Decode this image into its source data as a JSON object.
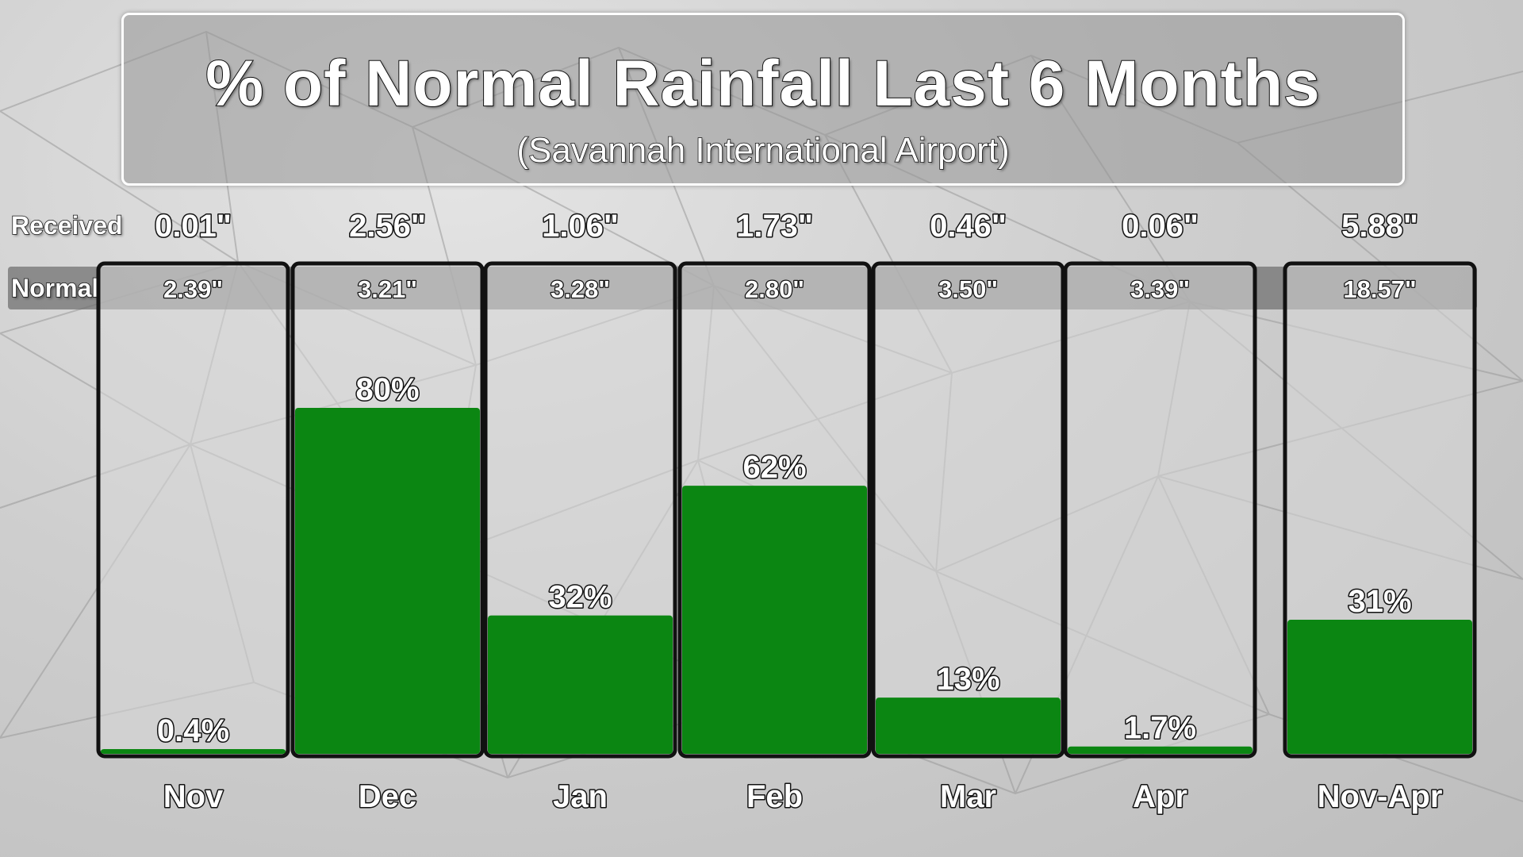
{
  "header": {
    "title": "% of Normal Rainfall Last 6 Months",
    "subtitle": "(Savannah International Airport)"
  },
  "rows": {
    "received_label": "Received",
    "normal_label": "Normal"
  },
  "colors": {
    "bar_fill": "#0b8612",
    "column_border": "#111111",
    "column_fill": "#d9d9d9"
  },
  "chart_data": {
    "type": "bar",
    "title": "% of Normal Rainfall Last 6 Months",
    "subtitle": "(Savannah International Airport)",
    "categories": [
      "Nov",
      "Dec",
      "Jan",
      "Feb",
      "Mar",
      "Apr",
      "Nov-Apr"
    ],
    "received": [
      "0.01\"",
      "2.56\"",
      "1.06\"",
      "1.73\"",
      "0.46\"",
      "0.06\"",
      "5.88\""
    ],
    "normal": [
      "2.39\"",
      "3.21\"",
      "3.28\"",
      "2.80\"",
      "3.50\"",
      "3.39\"",
      "18.57\""
    ],
    "series": [
      {
        "values": [
          0.4,
          80,
          32,
          62,
          13,
          1.7,
          31
        ],
        "labels": [
          "0.4%",
          "80%",
          "32%",
          "62%",
          "13%",
          "1.7%",
          "31%"
        ]
      }
    ],
    "ylim": [
      0,
      100
    ],
    "grid": false,
    "legend": "none"
  }
}
